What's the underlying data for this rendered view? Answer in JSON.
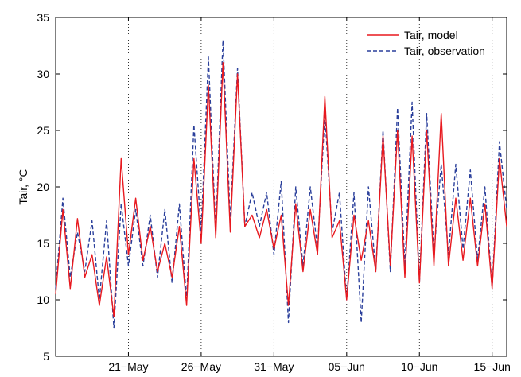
{
  "chart_data": {
    "type": "line",
    "title": "",
    "xlabel": "",
    "ylabel": "Tair, °C",
    "ylim": [
      5,
      35
    ],
    "xlim": [
      "2010-05-16",
      "2010-06-16"
    ],
    "y_ticks": [
      5,
      10,
      15,
      20,
      25,
      30,
      35
    ],
    "x_ticks": [
      {
        "date": "2010-05-21",
        "label": "21−May"
      },
      {
        "date": "2010-05-26",
        "label": "26−May"
      },
      {
        "date": "2010-05-31",
        "label": "31−May"
      },
      {
        "date": "2010-06-05",
        "label": "05−Jun"
      },
      {
        "date": "2010-06-10",
        "label": "10−Jun"
      },
      {
        "date": "2010-06-15",
        "label": "15−Jun"
      }
    ],
    "grid": "x-dotted",
    "legend_position": "top-right",
    "series": [
      {
        "name": "Tair, model",
        "color": "#e8191f",
        "style": "solid",
        "x": [
          "2010-05-16 00:00",
          "2010-05-16 12:00",
          "2010-05-17 00:00",
          "2010-05-17 12:00",
          "2010-05-18 00:00",
          "2010-05-18 12:00",
          "2010-05-19 00:00",
          "2010-05-19 12:00",
          "2010-05-20 00:00",
          "2010-05-20 12:00",
          "2010-05-21 00:00",
          "2010-05-21 12:00",
          "2010-05-22 00:00",
          "2010-05-22 12:00",
          "2010-05-23 00:00",
          "2010-05-23 12:00",
          "2010-05-24 00:00",
          "2010-05-24 12:00",
          "2010-05-25 00:00",
          "2010-05-25 12:00",
          "2010-05-26 00:00",
          "2010-05-26 12:00",
          "2010-05-27 00:00",
          "2010-05-27 12:00",
          "2010-05-28 00:00",
          "2010-05-28 12:00",
          "2010-05-29 00:00",
          "2010-05-29 12:00",
          "2010-05-30 00:00",
          "2010-05-30 12:00",
          "2010-05-31 00:00",
          "2010-05-31 12:00",
          "2010-06-01 00:00",
          "2010-06-01 12:00",
          "2010-06-02 00:00",
          "2010-06-02 12:00",
          "2010-06-03 00:00",
          "2010-06-03 12:00",
          "2010-06-04 00:00",
          "2010-06-04 12:00",
          "2010-06-05 00:00",
          "2010-06-05 12:00",
          "2010-06-06 00:00",
          "2010-06-06 12:00",
          "2010-06-07 00:00",
          "2010-06-07 12:00",
          "2010-06-08 00:00",
          "2010-06-08 12:00",
          "2010-06-09 00:00",
          "2010-06-09 12:00",
          "2010-06-10 00:00",
          "2010-06-10 12:00",
          "2010-06-11 00:00",
          "2010-06-11 12:00",
          "2010-06-12 00:00",
          "2010-06-12 12:00",
          "2010-06-13 00:00",
          "2010-06-13 12:00",
          "2010-06-14 00:00",
          "2010-06-14 12:00",
          "2010-06-15 00:00",
          "2010-06-15 12:00",
          "2010-06-16 00:00"
        ],
        "y": [
          10.5,
          18.0,
          11.0,
          17.2,
          12.0,
          14.0,
          9.5,
          13.8,
          8.5,
          22.5,
          14.0,
          19.0,
          13.5,
          16.5,
          12.5,
          15.0,
          12.0,
          16.5,
          9.5,
          22.5,
          15.0,
          29.0,
          15.5,
          31.0,
          16.0,
          30.0,
          16.5,
          17.5,
          15.5,
          18.0,
          14.5,
          17.5,
          9.5,
          18.5,
          12.5,
          18.0,
          14.0,
          28.0,
          15.5,
          17.0,
          10.0,
          17.5,
          13.5,
          17.0,
          12.5,
          24.5,
          13.0,
          25.0,
          12.0,
          24.5,
          11.5,
          25.0,
          13.0,
          26.5,
          13.0,
          19.0,
          13.5,
          19.0,
          13.0,
          18.5,
          11.0,
          22.5,
          16.5
        ]
      },
      {
        "name": "Tair, observation",
        "color": "#2a3f9b",
        "style": "dashed",
        "x": [
          "2010-05-16 00:00",
          "2010-05-16 12:00",
          "2010-05-17 00:00",
          "2010-05-17 12:00",
          "2010-05-18 00:00",
          "2010-05-18 12:00",
          "2010-05-19 00:00",
          "2010-05-19 12:00",
          "2010-05-20 00:00",
          "2010-05-20 12:00",
          "2010-05-21 00:00",
          "2010-05-21 12:00",
          "2010-05-22 00:00",
          "2010-05-22 12:00",
          "2010-05-23 00:00",
          "2010-05-23 12:00",
          "2010-05-24 00:00",
          "2010-05-24 12:00",
          "2010-05-25 00:00",
          "2010-05-25 12:00",
          "2010-05-26 00:00",
          "2010-05-26 12:00",
          "2010-05-27 00:00",
          "2010-05-27 12:00",
          "2010-05-28 00:00",
          "2010-05-28 12:00",
          "2010-05-29 00:00",
          "2010-05-29 12:00",
          "2010-05-30 00:00",
          "2010-05-30 12:00",
          "2010-05-31 00:00",
          "2010-05-31 12:00",
          "2010-06-01 00:00",
          "2010-06-01 12:00",
          "2010-06-02 00:00",
          "2010-06-02 12:00",
          "2010-06-03 00:00",
          "2010-06-03 12:00",
          "2010-06-04 00:00",
          "2010-06-04 12:00",
          "2010-06-05 00:00",
          "2010-06-05 12:00",
          "2010-06-06 00:00",
          "2010-06-06 12:00",
          "2010-06-07 00:00",
          "2010-06-07 12:00",
          "2010-06-08 00:00",
          "2010-06-08 12:00",
          "2010-06-09 00:00",
          "2010-06-09 12:00",
          "2010-06-10 00:00",
          "2010-06-10 12:00",
          "2010-06-11 00:00",
          "2010-06-11 12:00",
          "2010-06-12 00:00",
          "2010-06-12 12:00",
          "2010-06-13 00:00",
          "2010-06-13 12:00",
          "2010-06-14 00:00",
          "2010-06-14 12:00",
          "2010-06-15 00:00",
          "2010-06-15 12:00",
          "2010-06-16 00:00"
        ],
        "y": [
          11.0,
          19.0,
          12.0,
          16.0,
          12.5,
          17.0,
          10.0,
          17.0,
          7.5,
          18.5,
          13.0,
          18.0,
          13.0,
          17.5,
          12.0,
          18.0,
          11.5,
          18.5,
          10.0,
          25.5,
          16.0,
          31.5,
          16.0,
          33.0,
          17.0,
          30.5,
          16.5,
          19.5,
          16.5,
          19.5,
          14.0,
          20.5,
          8.0,
          20.0,
          13.0,
          20.0,
          14.5,
          26.5,
          16.0,
          19.5,
          10.0,
          19.5,
          8.0,
          20.0,
          12.5,
          25.0,
          12.5,
          27.0,
          13.0,
          27.5,
          11.5,
          26.5,
          14.0,
          22.0,
          14.0,
          22.0,
          14.5,
          21.5,
          13.5,
          20.0,
          11.0,
          24.0,
          18.0
        ]
      }
    ]
  }
}
